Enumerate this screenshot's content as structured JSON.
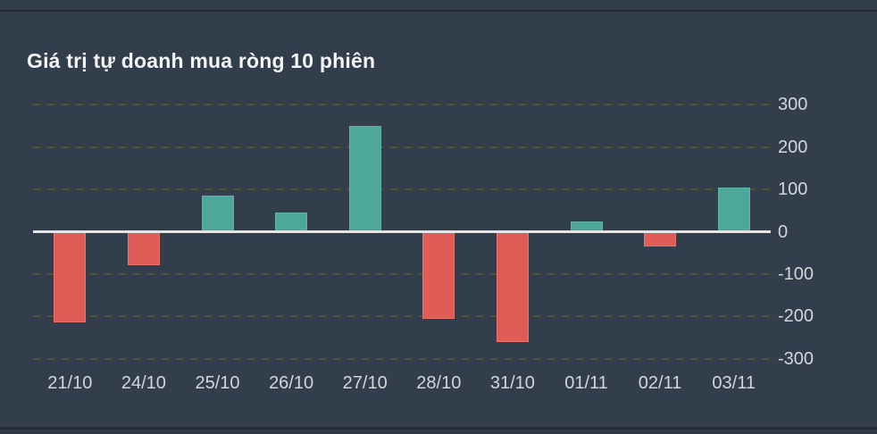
{
  "title": "Giá trị tự doanh mua ròng 10 phiên",
  "chart_data": {
    "type": "bar",
    "title": "Giá trị tự doanh mua ròng 10 phiên",
    "categories": [
      "21/10",
      "24/10",
      "25/10",
      "26/10",
      "27/10",
      "28/10",
      "31/10",
      "01/11",
      "02/11",
      "03/11"
    ],
    "values": [
      -215,
      -80,
      85,
      45,
      250,
      -205,
      -260,
      25,
      -35,
      105
    ],
    "xlabel": "",
    "ylabel": "",
    "y_ticks": [
      300,
      200,
      100,
      0,
      -100,
      -200,
      -300
    ],
    "ylim": [
      -330,
      345
    ],
    "grid": "horizontal-dashed",
    "legend_position": "none",
    "yaxis_side": "right",
    "colors": {
      "positive": "#4ea79b",
      "positive_border": "#62b2a6",
      "negative": "#df5d56",
      "negative_border": "#e5756e",
      "background": "#323e4b",
      "grid": "#565039",
      "zero_line": "#e3e4e8",
      "label": "#d2d6d9",
      "title": "#f2f4f5"
    }
  }
}
